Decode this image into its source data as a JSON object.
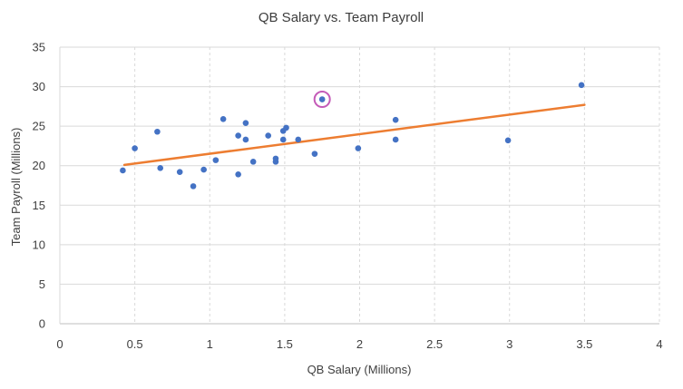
{
  "chart_data": {
    "type": "scatter",
    "title": "QB Salary vs. Team Payroll",
    "xlabel": "QB Salary (Millions)",
    "ylabel": "Team Payroll (Millions)",
    "xlim": [
      0,
      4
    ],
    "ylim": [
      0,
      35
    ],
    "x_ticks": [
      "0",
      "0.5",
      "1",
      "1.5",
      "2",
      "2.5",
      "3",
      "3.5",
      "4"
    ],
    "y_ticks": [
      "0",
      "5",
      "10",
      "15",
      "20",
      "25",
      "30",
      "35"
    ],
    "grid": "vertical dashed, horizontal solid",
    "legend": "none",
    "series": [
      {
        "color": "#4472C4",
        "points": [
          [
            0.42,
            19.4
          ],
          [
            0.5,
            22.2
          ],
          [
            0.65,
            24.3
          ],
          [
            0.67,
            19.7
          ],
          [
            0.8,
            19.2
          ],
          [
            0.89,
            17.4
          ],
          [
            0.96,
            19.5
          ],
          [
            1.04,
            20.7
          ],
          [
            1.09,
            25.9
          ],
          [
            1.19,
            18.9
          ],
          [
            1.19,
            23.8
          ],
          [
            1.24,
            25.4
          ],
          [
            1.24,
            23.3
          ],
          [
            1.29,
            20.5
          ],
          [
            1.39,
            23.8
          ],
          [
            1.44,
            20.5
          ],
          [
            1.44,
            20.9
          ],
          [
            1.49,
            23.3
          ],
          [
            1.49,
            24.4
          ],
          [
            1.51,
            24.8
          ],
          [
            1.59,
            23.3
          ],
          [
            1.7,
            21.5
          ],
          [
            1.75,
            28.4
          ],
          [
            1.99,
            22.2
          ],
          [
            2.24,
            25.8
          ],
          [
            2.24,
            23.3
          ],
          [
            2.99,
            23.2
          ],
          [
            3.48,
            30.2
          ]
        ]
      }
    ],
    "trendline": {
      "color": "#ED7D31",
      "x": [
        0.43,
        3.5
      ],
      "y": [
        20.1,
        27.7
      ]
    },
    "highlight": {
      "x": 1.75,
      "y": 28.4,
      "color": "#C45BB8"
    }
  }
}
